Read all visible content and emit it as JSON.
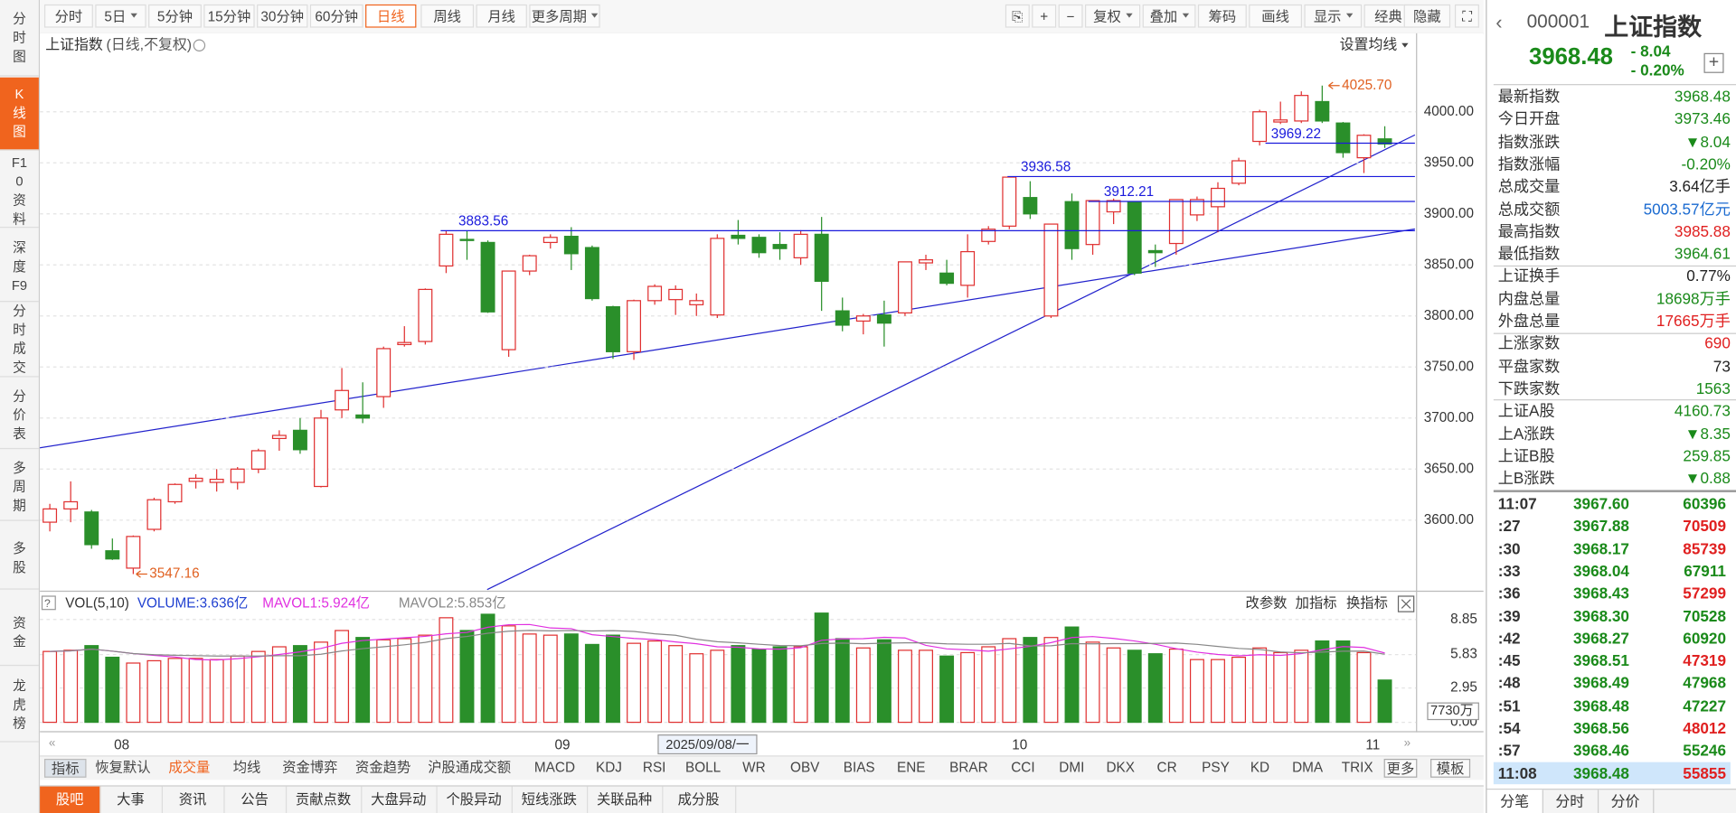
{
  "nav_left": [
    "分时图",
    "K线图",
    "F10资料",
    "深度F9",
    "分时成交",
    "分价表",
    "多周期",
    "多股",
    "资金",
    "龙虎榜"
  ],
  "toolbar": {
    "periods": [
      "分时",
      "5日",
      "5分钟",
      "15分钟",
      "30分钟",
      "60分钟",
      "日线",
      "周线",
      "月线",
      "更多周期"
    ],
    "tools": [
      "复权",
      "叠加",
      "筹码",
      "画线",
      "显示",
      "经典",
      "隐藏"
    ]
  },
  "chart_data": {
    "type": "candlestick",
    "title": "上证指数",
    "subtitle": "(日线,不复权)",
    "ma_setting": "设置均线",
    "up_color": "#e03030",
    "down_color": "#2a8f2a",
    "level_color": "#1a1adc",
    "ylim": [
      3532,
      4077
    ],
    "yticks": [
      {
        "value": 3600,
        "label": "3600.00"
      },
      {
        "value": 3650,
        "label": "3650.00"
      },
      {
        "value": 3700,
        "label": "3700.00"
      },
      {
        "value": 3750,
        "label": "3750.00"
      },
      {
        "value": 3800,
        "label": "3800.00"
      },
      {
        "value": 3850,
        "label": "3850.00"
      },
      {
        "value": 3900,
        "label": "3900.00"
      },
      {
        "value": 3950,
        "label": "3950.00"
      },
      {
        "value": 4000,
        "label": "4000.00"
      }
    ],
    "candles": [
      [
        3598,
        3616,
        3589,
        3611
      ],
      [
        3611,
        3638,
        3598,
        3618
      ],
      [
        3608,
        3610,
        3572,
        3576
      ],
      [
        3570,
        3582,
        3561,
        3562
      ],
      [
        3553,
        3585,
        3547.16,
        3584
      ],
      [
        3591,
        3622,
        3589,
        3620
      ],
      [
        3618,
        3636,
        3616,
        3635
      ],
      [
        3638,
        3645,
        3631,
        3641
      ],
      [
        3637,
        3650,
        3628,
        3640
      ],
      [
        3637,
        3652,
        3630,
        3650
      ],
      [
        3650,
        3670,
        3646,
        3668
      ],
      [
        3680,
        3688,
        3668,
        3683
      ],
      [
        3688,
        3700,
        3665,
        3669
      ],
      [
        3633,
        3708,
        3632,
        3700
      ],
      [
        3708,
        3749,
        3700,
        3727
      ],
      [
        3703,
        3735,
        3695,
        3700
      ],
      [
        3721,
        3770,
        3710,
        3768
      ],
      [
        3772,
        3790,
        3770,
        3774
      ],
      [
        3775,
        3827,
        3772,
        3826
      ],
      [
        3849,
        3883.56,
        3842,
        3880
      ],
      [
        3875,
        3883,
        3855,
        3874
      ],
      [
        3872,
        3874,
        3803,
        3804
      ],
      [
        3767,
        3844,
        3760,
        3844
      ],
      [
        3844,
        3860,
        3840,
        3859
      ],
      [
        3872,
        3880,
        3866,
        3877
      ],
      [
        3878,
        3887,
        3845,
        3861
      ],
      [
        3867,
        3869,
        3815,
        3817
      ],
      [
        3809,
        3810,
        3758,
        3765
      ],
      [
        3765,
        3816,
        3757,
        3815
      ],
      [
        3815,
        3831,
        3811,
        3829
      ],
      [
        3816,
        3830,
        3801,
        3826
      ],
      [
        3811,
        3822,
        3800,
        3815
      ],
      [
        3801,
        3880,
        3798,
        3876
      ],
      [
        3879,
        3894,
        3870,
        3876
      ],
      [
        3877,
        3880,
        3857,
        3862
      ],
      [
        3870,
        3882,
        3855,
        3866
      ],
      [
        3857,
        3884,
        3850,
        3880
      ],
      [
        3880,
        3897,
        3805,
        3834
      ],
      [
        3805,
        3818,
        3785,
        3791
      ],
      [
        3795,
        3802,
        3782,
        3800
      ],
      [
        3801,
        3815,
        3770,
        3793
      ],
      [
        3803,
        3853,
        3800,
        3853
      ],
      [
        3852,
        3860,
        3845,
        3855
      ],
      [
        3842,
        3855,
        3830,
        3832
      ],
      [
        3830,
        3880,
        3818,
        3863
      ],
      [
        3873,
        3888,
        3870,
        3885
      ],
      [
        3888,
        3936.58,
        3885,
        3936
      ],
      [
        3916,
        3932,
        3895,
        3900
      ],
      [
        3800,
        3889,
        3798,
        3890
      ],
      [
        3912,
        3920,
        3855,
        3866
      ],
      [
        3870,
        3912,
        3860,
        3913
      ],
      [
        3902,
        3915,
        3890,
        3913
      ],
      [
        3912,
        3912.21,
        3840,
        3842
      ],
      [
        3864,
        3870,
        3848,
        3862
      ],
      [
        3871,
        3914,
        3860,
        3914
      ],
      [
        3899,
        3917,
        3893,
        3914
      ],
      [
        3907,
        3931,
        3882,
        3925
      ],
      [
        3930,
        3955,
        3928,
        3952
      ],
      [
        3971,
        4002,
        3967,
        4000
      ],
      [
        3990,
        4010,
        3988,
        3992
      ],
      [
        3991,
        4020,
        3989,
        4016
      ],
      [
        4010,
        4025.7,
        3989,
        3991
      ],
      [
        3989,
        3990,
        3955,
        3960
      ],
      [
        3955,
        3978,
        3940,
        3977
      ],
      [
        3973.46,
        3985.88,
        3964.61,
        3968.48
      ]
    ],
    "levels": [
      3883.56,
      3936.58,
      3912.21,
      3969.22
    ],
    "annotations": [
      {
        "value": 3547.16,
        "label": "3547.16"
      },
      {
        "value": 4025.7,
        "label": "4025.70"
      }
    ],
    "x_labels": [
      "08",
      "09",
      "10",
      "11"
    ],
    "crosshair_date": "2025/09/08/一"
  },
  "volume": {
    "title": "VOL(5,10)",
    "volume_label": "VOLUME:3.636亿",
    "mavol1_label": "MAVOL1:5.924亿",
    "mavol2_label": "MAVOL2:5.853亿",
    "mavol1_color": "#e030e0",
    "mavol2_color": "#888888",
    "values": [
      6.1,
      6.2,
      6.6,
      5.6,
      5.1,
      5.3,
      5.5,
      5.5,
      5.4,
      5.7,
      6.1,
      6.5,
      6.6,
      6.9,
      7.9,
      7.3,
      7.1,
      7.2,
      7.5,
      9.0,
      7.9,
      9.3,
      8.3,
      7.6,
      7.5,
      7.6,
      6.7,
      7.5,
      6.8,
      7.0,
      6.6,
      5.9,
      6.2,
      6.6,
      6.3,
      6.5,
      6.5,
      9.4,
      7.2,
      6.4,
      7.1,
      6.2,
      6.2,
      5.7,
      6.0,
      6.5,
      7.2,
      7.3,
      7.3,
      8.2,
      6.9,
      6.4,
      6.2,
      5.9,
      6.3,
      5.4,
      5.4,
      5.6,
      6.4,
      6.0,
      6.2,
      7.0,
      7.0,
      6.0,
      3.636
    ],
    "ylim": [
      0,
      10.76
    ],
    "yticks": [
      8.85,
      5.83,
      2.95,
      {
        "value": 0,
        "label": "0.00"
      }
    ],
    "unit_label": "7730万",
    "actions": [
      "改参数",
      "加指标",
      "换指标"
    ]
  },
  "indicator_tabs": [
    "指标",
    "恢复默认",
    "成交量",
    "均线",
    "资金博弈",
    "资金趋势",
    "沪股通成交额",
    "MACD",
    "KDJ",
    "RSI",
    "BOLL",
    "WR",
    "OBV",
    "BIAS",
    "ENE",
    "BRAR",
    "CCI",
    "DMI",
    "DKX",
    "CR",
    "PSY",
    "KD",
    "DMA",
    "TRIX",
    "更多",
    "模板"
  ],
  "bottom_tabs": [
    "股吧",
    "大事",
    "资讯",
    "公告",
    "贡献点数",
    "大盘异动",
    "个股异动",
    "短线涨跌",
    "关联品种",
    "成分股"
  ],
  "quote": {
    "code": "000001",
    "name": "上证指数",
    "price": "3968.48",
    "change": "- 8.04",
    "pct": "- 0.20%",
    "rows": [
      {
        "label": "最新指数",
        "value": "3968.48",
        "color": "#1a8a1a"
      },
      {
        "label": "今日开盘",
        "value": "3973.46",
        "color": "#1a8a1a"
      },
      {
        "label": "指数涨跌",
        "value": "▼8.04",
        "color": "#1a8a1a"
      },
      {
        "label": "指数涨幅",
        "value": "-0.20%",
        "color": "#1a8a1a"
      },
      {
        "label": "总成交量",
        "value": "3.64亿手",
        "color": "#222222"
      },
      {
        "label": "总成交额",
        "value": "5003.57亿元",
        "color": "#1a6ad0"
      },
      {
        "label": "最高指数",
        "value": "3985.88",
        "color": "#e02020"
      },
      {
        "label": "最低指数",
        "value": "3964.61",
        "color": "#1a8a1a"
      },
      {
        "label": "上证换手",
        "value": "0.77%",
        "color": "#222222"
      },
      {
        "label": "内盘总量",
        "value": "18698万手",
        "color": "#1a8a1a"
      },
      {
        "label": "外盘总量",
        "value": "17665万手",
        "color": "#e02020"
      },
      {
        "label": "上涨家数",
        "value": "690",
        "color": "#e02020"
      },
      {
        "label": "平盘家数",
        "value": "73",
        "color": "#222222"
      },
      {
        "label": "下跌家数",
        "value": "1563",
        "color": "#1a8a1a"
      },
      {
        "label": "上证A股",
        "value": "4160.73",
        "color": "#1a8a1a"
      },
      {
        "label": "上A涨跌",
        "value": "▼8.35",
        "color": "#1a8a1a"
      },
      {
        "label": "上证B股",
        "value": "259.85",
        "color": "#1a8a1a"
      },
      {
        "label": "上B涨跌",
        "value": "▼0.88",
        "color": "#1a8a1a"
      }
    ],
    "ticks": [
      {
        "time": "11:07",
        "price": "3967.60",
        "volume": "60396",
        "color": "#1a8a1a"
      },
      {
        "time": ":27",
        "price": "3967.88",
        "volume": "70509",
        "color": "#e02020"
      },
      {
        "time": ":30",
        "price": "3968.17",
        "volume": "85739",
        "color": "#e02020"
      },
      {
        "time": ":33",
        "price": "3968.04",
        "volume": "67911",
        "color": "#1a8a1a"
      },
      {
        "time": ":36",
        "price": "3968.43",
        "volume": "57299",
        "color": "#e02020"
      },
      {
        "time": ":39",
        "price": "3968.30",
        "volume": "70528",
        "color": "#1a8a1a"
      },
      {
        "time": ":42",
        "price": "3968.27",
        "volume": "60920",
        "color": "#1a8a1a"
      },
      {
        "time": ":45",
        "price": "3968.51",
        "volume": "47319",
        "color": "#e02020"
      },
      {
        "time": ":48",
        "price": "3968.49",
        "volume": "47968",
        "color": "#1a8a1a"
      },
      {
        "time": ":51",
        "price": "3968.48",
        "volume": "47227",
        "color": "#1a8a1a"
      },
      {
        "time": ":54",
        "price": "3968.56",
        "volume": "48012",
        "color": "#e02020"
      },
      {
        "time": ":57",
        "price": "3968.46",
        "volume": "55246",
        "color": "#1a8a1a"
      },
      {
        "time": "11:08",
        "price": "3968.48",
        "volume": "55855",
        "color": "#e02020"
      }
    ],
    "tabs": [
      "分笔",
      "分时",
      "分价"
    ]
  }
}
